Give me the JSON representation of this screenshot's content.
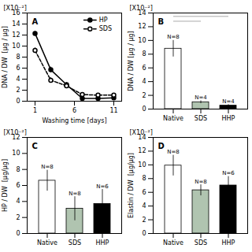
{
  "chart_data": [
    {
      "type": "line",
      "title": "A",
      "annotations": [
        "[X10⁻²]"
      ],
      "xlabel": "Washing time [days]",
      "ylabel": "DNA / DW  [μg / μg]",
      "x": [
        1,
        3,
        5,
        7,
        9,
        11
      ],
      "series": [
        {
          "name": "HP",
          "color": "black",
          "line_style": "solid",
          "marker": "filled circle",
          "values": [
            12.3,
            5.7,
            3.0,
            0.5,
            0.5,
            0.6
          ],
          "errors": [
            0.4,
            0.5,
            0.4,
            0.15,
            0.1,
            0.1
          ]
        },
        {
          "name": "SDS",
          "color": "black",
          "line_style": "dashed",
          "marker": "open circle",
          "values": [
            9.2,
            3.8,
            2.8,
            1.2,
            1.1,
            1.1
          ],
          "errors": [
            0.5,
            0.5,
            0.4,
            0.3,
            0.15,
            0.15
          ]
        }
      ],
      "xlim": [
        0,
        12
      ],
      "xticks": [
        1,
        6,
        11
      ],
      "ylim": [
        0,
        16
      ],
      "yticks": [
        0,
        2,
        4,
        6,
        8,
        10,
        12,
        14,
        16
      ],
      "legend": "upper right",
      "grid": false
    },
    {
      "type": "bar",
      "title": "B",
      "annotations": [
        "[X10⁻²]"
      ],
      "ylabel": "DNA / DW [μg / μg]",
      "categories": [
        "Native",
        "SDS",
        "HHP"
      ],
      "values": [
        8.8,
        1.0,
        0.5
      ],
      "errors": [
        1.2,
        0.2,
        0.15
      ],
      "n_labels": [
        "N=8",
        "N=4",
        "N=4"
      ],
      "colors": [
        "white",
        "#b0c4b0",
        "black"
      ],
      "ylim": [
        0,
        14
      ],
      "yticks": [
        0,
        2,
        4,
        6,
        8,
        10,
        12,
        14
      ],
      "sig_lines": [
        {
          "from": "Native",
          "to": "SDS",
          "y": 12.8,
          "color": "#aaaaaa"
        },
        {
          "from": "Native",
          "to": "HHP",
          "y": 13.5,
          "color": "#aaaaaa"
        }
      ],
      "grid": false
    },
    {
      "type": "bar",
      "title": "C",
      "annotations": [
        "[X10⁻²]"
      ],
      "ylabel": "HP / DW  [μg/μg]",
      "categories": [
        "Native",
        "SDS",
        "HHP"
      ],
      "values": [
        6.6,
        3.1,
        3.7
      ],
      "errors": [
        1.3,
        1.5,
        1.8
      ],
      "n_labels": [
        "N=8",
        "N=8",
        "N=6"
      ],
      "colors": [
        "white",
        "#b0c4b0",
        "black"
      ],
      "ylim": [
        0,
        12
      ],
      "yticks": [
        0,
        2,
        4,
        6,
        8,
        10,
        12
      ],
      "grid": false
    },
    {
      "type": "bar",
      "title": "D",
      "annotations": [
        "[X10⁻²]"
      ],
      "ylabel": "Elastin / DW  [μg/μg]",
      "categories": [
        "Native",
        "SDS",
        "HHP"
      ],
      "values": [
        9.9,
        6.3,
        7.0
      ],
      "errors": [
        1.5,
        0.8,
        1.3
      ],
      "n_labels": [
        "N=8",
        "N=8",
        "N=6"
      ],
      "colors": [
        "white",
        "#b0c4b0",
        "black"
      ],
      "ylim": [
        0,
        14
      ],
      "yticks": [
        0,
        2,
        4,
        6,
        8,
        10,
        12,
        14
      ],
      "grid": false
    }
  ]
}
